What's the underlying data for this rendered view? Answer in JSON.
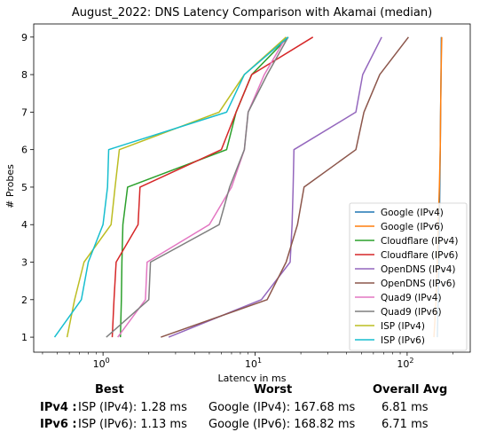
{
  "chart_data": {
    "type": "line",
    "title": "August_2022: DNS Latency Comparison with Akamai (median)",
    "xlabel": "Latency in ms",
    "ylabel": "# Probes",
    "xscale": "log",
    "xlim": [
      0.35,
      260
    ],
    "ylim": [
      0.6,
      9.35
    ],
    "x_ticks": [
      {
        "value": 1,
        "base": "10",
        "exp": "0"
      },
      {
        "value": 10,
        "base": "10",
        "exp": "1"
      },
      {
        "value": 100,
        "base": "10",
        "exp": "2"
      }
    ],
    "y_ticks": [
      "1",
      "2",
      "3",
      "4",
      "5",
      "6",
      "7",
      "8",
      "9"
    ],
    "legend_position": "lower-right",
    "grid": false,
    "series": [
      {
        "name": "Google (IPv4)",
        "color": "#1f77b4",
        "x": [
          158,
          160,
          162,
          163,
          164,
          165,
          166,
          167,
          167.68
        ],
        "y": [
          1,
          2,
          3,
          4,
          5,
          6,
          7,
          8,
          9
        ]
      },
      {
        "name": "Google (IPv6)",
        "color": "#ff7f0e",
        "x": [
          150,
          155,
          158,
          160,
          163,
          165,
          166,
          167,
          168.82
        ],
        "y": [
          1,
          2,
          3,
          4,
          5,
          6,
          7,
          8,
          9
        ]
      },
      {
        "name": "Cloudflare (IPv4)",
        "color": "#2ca02c",
        "x": [
          1.3,
          1.32,
          1.33,
          1.35,
          1.45,
          6.5,
          7.5,
          9.5,
          16.5
        ],
        "y": [
          1,
          2,
          3,
          4,
          5,
          6,
          7,
          8,
          9
        ]
      },
      {
        "name": "Cloudflare (IPv6)",
        "color": "#d62728",
        "x": [
          1.15,
          1.18,
          1.22,
          1.7,
          1.75,
          6.0,
          7.5,
          9.5,
          24.0
        ],
        "y": [
          1,
          2,
          3,
          4,
          5,
          6,
          7,
          8,
          9
        ]
      },
      {
        "name": "OpenDNS (IPv4)",
        "color": "#9467bd",
        "x": [
          2.7,
          11.0,
          17.0,
          17.5,
          17.8,
          18.0,
          46.0,
          51.0,
          68.0
        ],
        "y": [
          1,
          2,
          3,
          4,
          5,
          6,
          7,
          8,
          9
        ]
      },
      {
        "name": "OpenDNS (IPv6)",
        "color": "#8c564b",
        "x": [
          2.4,
          12.0,
          16.0,
          19.0,
          21.0,
          46.0,
          52.0,
          66.0,
          102.0
        ],
        "y": [
          1,
          2,
          3,
          4,
          5,
          6,
          7,
          8,
          9
        ]
      },
      {
        "name": "Quad9 (IPv4)",
        "color": "#e377c2",
        "x": [
          1.25,
          1.9,
          1.95,
          5.0,
          7.0,
          8.5,
          9.0,
          11.5,
          16.0
        ],
        "y": [
          1,
          2,
          3,
          4,
          5,
          6,
          7,
          8,
          9
        ]
      },
      {
        "name": "Quad9 (IPv6)",
        "color": "#7f7f7f",
        "x": [
          1.05,
          2.0,
          2.05,
          5.8,
          6.8,
          8.5,
          9.0,
          12.0,
          16.5
        ],
        "y": [
          1,
          2,
          3,
          4,
          5,
          6,
          7,
          8,
          9
        ]
      },
      {
        "name": "ISP (IPv4)",
        "color": "#bcbd22",
        "x": [
          0.58,
          0.65,
          0.75,
          1.13,
          1.2,
          1.28,
          5.8,
          8.5,
          16.0
        ],
        "y": [
          1,
          2,
          3,
          4,
          5,
          6,
          7,
          8,
          9
        ]
      },
      {
        "name": "ISP (IPv6)",
        "color": "#17becf",
        "x": [
          0.48,
          0.72,
          0.8,
          1.0,
          1.07,
          1.09,
          6.5,
          8.5,
          16.5
        ],
        "y": [
          1,
          2,
          3,
          4,
          5,
          6,
          7,
          8,
          9
        ]
      }
    ]
  },
  "summary": {
    "headers": {
      "best": "Best",
      "worst": "Worst",
      "avg": "Overall Avg"
    },
    "rows": [
      {
        "label": "IPv4 :",
        "best": "ISP (IPv4): 1.28 ms",
        "worst": "Google (IPv4): 167.68 ms",
        "avg": "6.81 ms"
      },
      {
        "label": "IPv6 :",
        "best": "ISP (IPv6): 1.13 ms",
        "worst": "Google (IPv6): 168.82 ms",
        "avg": "6.71 ms"
      }
    ]
  }
}
